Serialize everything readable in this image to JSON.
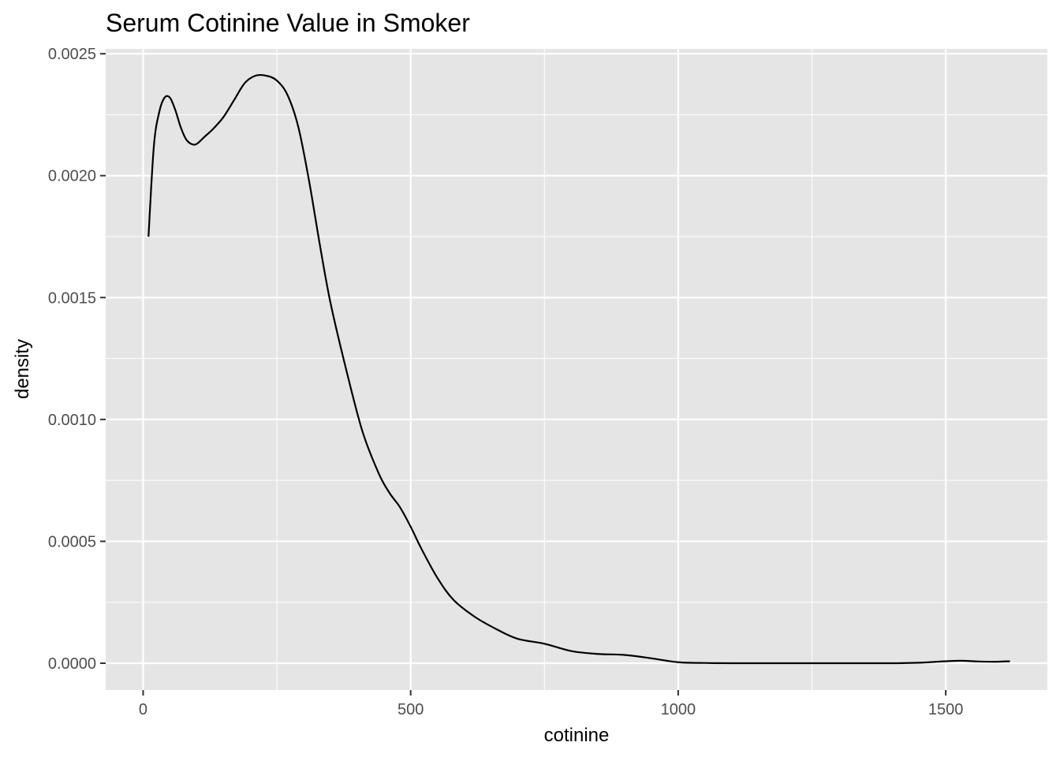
{
  "colors": {
    "panel_background": "#e5e5e5",
    "grid_line": "#ffffff",
    "line": "#000000",
    "text": "#000000",
    "tick_text": "#4d4d4d",
    "tick_mark": "#333333"
  },
  "chart_data": {
    "type": "line",
    "title": "Serum Cotinine Value in Smoker",
    "xlabel": "cotinine",
    "ylabel": "density",
    "xlim": [
      -70,
      1690
    ],
    "ylim": [
      -0.00011,
      0.00252
    ],
    "x_ticks": [
      0,
      500,
      1000,
      1500
    ],
    "x_tick_labels": [
      "0",
      "500",
      "1000",
      "1500"
    ],
    "y_ticks": [
      0.0,
      0.0005,
      0.001,
      0.0015,
      0.002,
      0.0025
    ],
    "y_tick_labels": [
      "0.0000",
      "0.0005",
      "0.0010",
      "0.0015",
      "0.0020",
      "0.0025"
    ],
    "grid": true,
    "legend": "none",
    "series": [
      {
        "x": [
          10,
          20,
          30,
          40,
          50,
          60,
          70,
          80,
          90,
          100,
          115,
          130,
          150,
          170,
          190,
          210,
          230,
          250,
          270,
          290,
          310,
          330,
          350,
          380,
          410,
          440,
          460,
          480,
          500,
          520,
          550,
          580,
          620,
          660,
          700,
          750,
          800,
          850,
          900,
          950,
          1000,
          1050,
          1100,
          1200,
          1300,
          1400,
          1450,
          1500,
          1530,
          1560,
          1590,
          1620
        ],
        "y": [
          0.00175,
          0.00212,
          0.00226,
          0.00232,
          0.00232,
          0.00227,
          0.0022,
          0.00215,
          0.00213,
          0.00213,
          0.00216,
          0.00219,
          0.00224,
          0.00231,
          0.00238,
          0.00241,
          0.00241,
          0.00239,
          0.00233,
          0.0022,
          0.00198,
          0.00172,
          0.00148,
          0.0012,
          0.00095,
          0.00078,
          0.0007,
          0.00064,
          0.00056,
          0.00047,
          0.00035,
          0.00026,
          0.00019,
          0.00014,
          0.0001,
          8e-05,
          5e-05,
          3.8e-05,
          3.4e-05,
          2e-05,
          4e-06,
          1e-06,
          0.0,
          0.0,
          0.0,
          0.0,
          2e-06,
          8e-06,
          1e-05,
          7e-06,
          6e-06,
          8e-06
        ]
      }
    ]
  }
}
